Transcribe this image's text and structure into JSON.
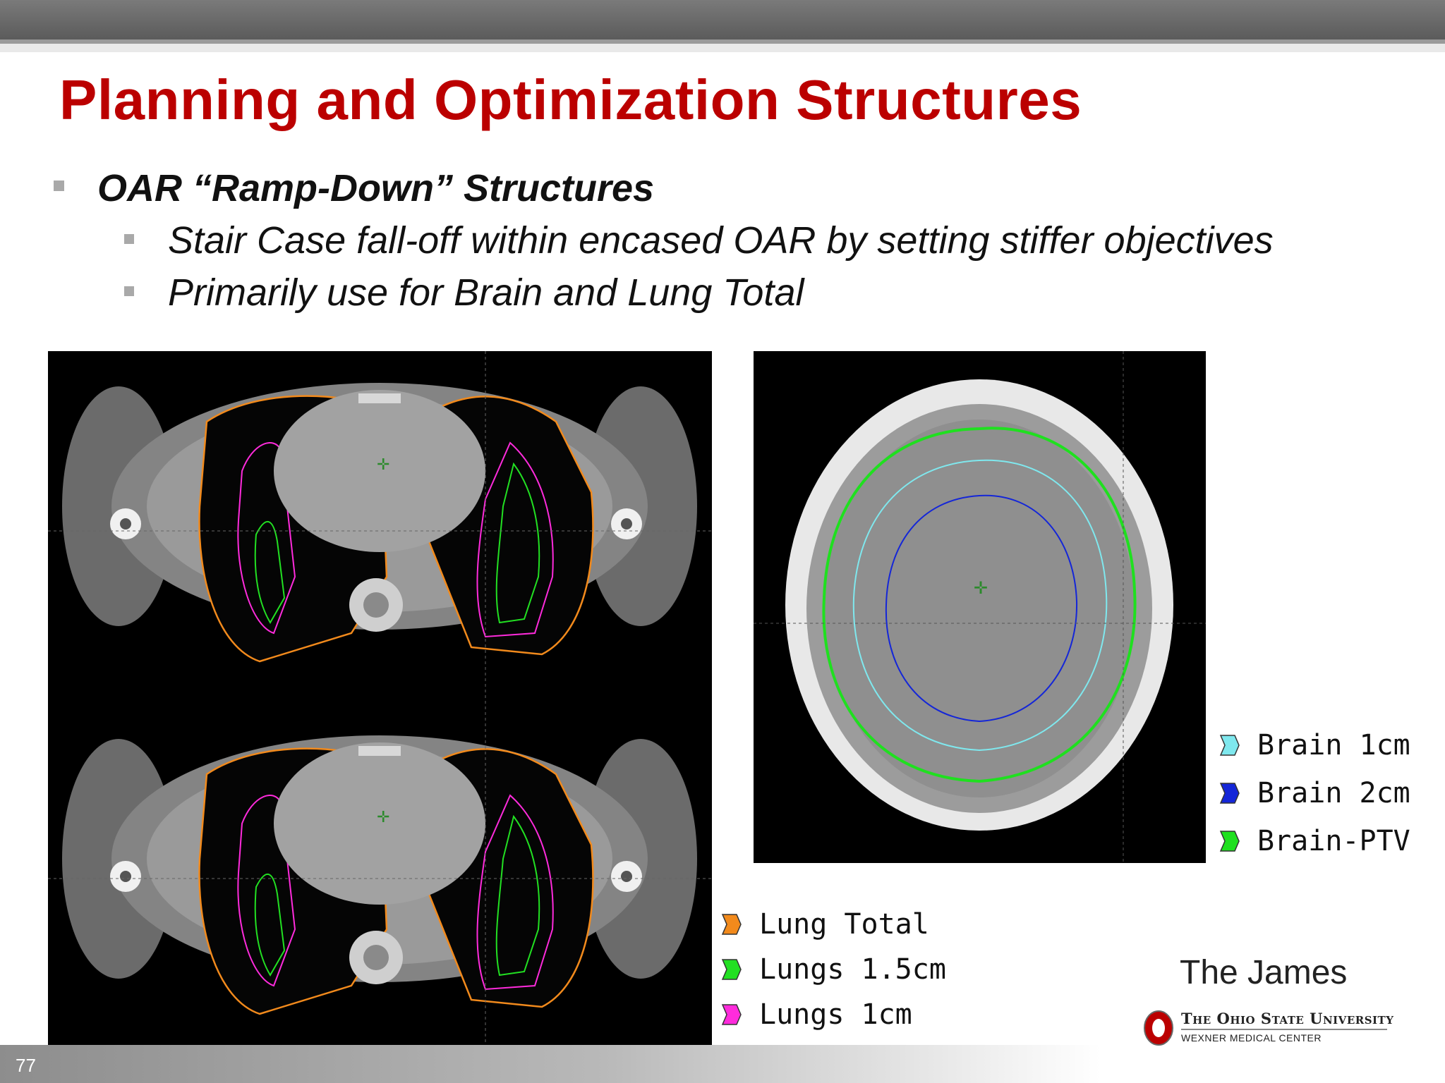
{
  "slide": {
    "title": "Planning and Optimization Structures",
    "bullets": [
      {
        "text": "OAR “Ramp-Down” Structures"
      },
      {
        "text": "Stair Case fall-off within encased OAR by setting stiffer objectives"
      },
      {
        "text": "Primarily use for Brain and Lung Total"
      }
    ],
    "number": "77"
  },
  "lung_legend": [
    {
      "label": "Lung Total",
      "color": "#f28a1c"
    },
    {
      "label": "Lungs 1.5cm",
      "color": "#22e022"
    },
    {
      "label": "Lungs 1cm",
      "color": "#ff2bdc"
    }
  ],
  "brain_legend": [
    {
      "label": "Brain 1cm",
      "color": "#7fe8ee"
    },
    {
      "label": "Brain 2cm",
      "color": "#1426d8"
    },
    {
      "label": "Brain-PTV",
      "color": "#1fe01f"
    }
  ],
  "branding": {
    "center_name": "The James",
    "university": "The Ohio State University",
    "medical_center": "WEXNER MEDICAL CENTER",
    "logo_letter": "O"
  },
  "colors": {
    "title": "#bb0000",
    "bullet_marker": "#a9a9a9"
  }
}
